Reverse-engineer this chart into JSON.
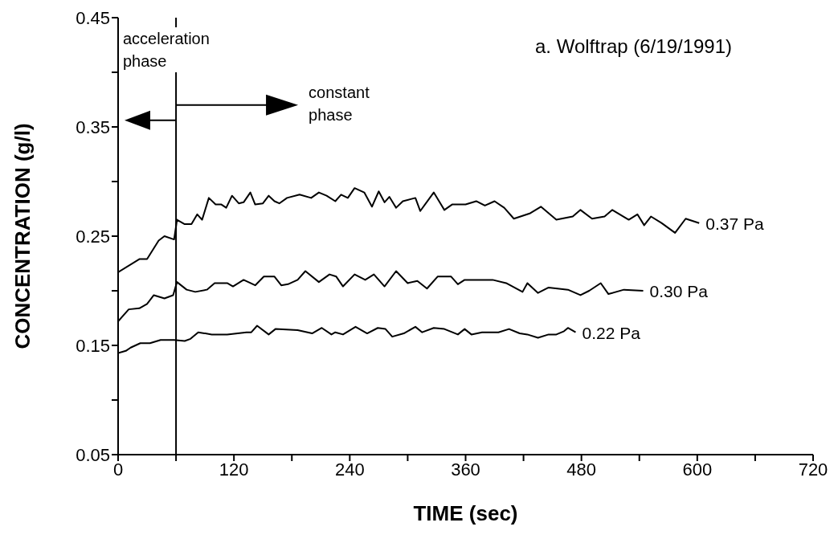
{
  "chart_data": {
    "type": "line",
    "title": "a.  Wolftrap (6/19/1991)",
    "xlabel": "TIME (sec)",
    "ylabel": "CONCENTRATION (g/l)",
    "xlim": [
      0,
      720
    ],
    "xticks": [
      0,
      {
        "value": 60,
        "label": null
      },
      120,
      {
        "value": 180,
        "label": null
      },
      240,
      {
        "value": 300,
        "label": null
      },
      360,
      {
        "value": 420,
        "label": null
      },
      480,
      {
        "value": 540,
        "label": null
      },
      600,
      {
        "value": 660,
        "label": null
      },
      720
    ],
    "ylim": [
      0.05,
      0.45
    ],
    "yticks": [
      0.05,
      {
        "value": 0.1,
        "label": null
      },
      0.15,
      {
        "value": 0.2,
        "label": null
      },
      0.25,
      {
        "value": 0.3,
        "label": null
      },
      0.35,
      {
        "value": 0.4,
        "label": null
      },
      0.45
    ],
    "marker": "none",
    "line_style": "solid",
    "ref_lines": [
      {
        "axis": "x",
        "value": 60,
        "color": "#000000"
      }
    ],
    "annotations": [
      "acceleration\nphase",
      "constant\nphase"
    ],
    "series": [
      {
        "name": "0.37 Pa",
        "color": "#000000",
        "x": [
          0,
          22,
          30,
          42,
          48,
          58,
          61,
          69,
          76,
          82,
          87,
          94,
          101,
          107,
          112,
          118,
          125,
          130,
          137,
          142,
          150,
          156,
          162,
          167,
          175,
          188,
          200,
          208,
          216,
          225,
          231,
          238,
          245,
          255,
          263,
          270,
          276,
          281,
          288,
          295,
          308,
          313,
          327,
          338,
          346,
          360,
          371,
          380,
          390,
          400,
          410,
          427,
          438,
          454,
          471,
          479,
          491,
          504,
          512,
          529,
          538,
          545,
          552,
          563,
          577,
          588,
          602
        ],
        "values": [
          0.217,
          0.229,
          0.229,
          0.246,
          0.25,
          0.247,
          0.265,
          0.261,
          0.261,
          0.27,
          0.265,
          0.285,
          0.279,
          0.279,
          0.276,
          0.287,
          0.28,
          0.281,
          0.29,
          0.279,
          0.28,
          0.287,
          0.282,
          0.28,
          0.285,
          0.288,
          0.285,
          0.29,
          0.287,
          0.282,
          0.288,
          0.285,
          0.294,
          0.29,
          0.277,
          0.291,
          0.281,
          0.286,
          0.276,
          0.282,
          0.285,
          0.273,
          0.29,
          0.274,
          0.279,
          0.279,
          0.282,
          0.278,
          0.282,
          0.276,
          0.266,
          0.271,
          0.277,
          0.265,
          0.268,
          0.274,
          0.266,
          0.268,
          0.274,
          0.265,
          0.27,
          0.26,
          0.268,
          0.262,
          0.253,
          0.266,
          0.262
        ]
      },
      {
        "name": "0.30 Pa",
        "color": "#000000",
        "x": [
          0,
          11,
          22,
          30,
          37,
          48,
          57,
          61,
          71,
          80,
          92,
          100,
          113,
          119,
          130,
          142,
          151,
          162,
          169,
          176,
          186,
          194,
          208,
          219,
          226,
          233,
          245,
          256,
          265,
          276,
          288,
          300,
          310,
          320,
          331,
          345,
          352,
          359,
          371,
          388,
          402,
          419,
          424,
          435,
          446,
          466,
          479,
          488,
          500,
          508,
          524,
          544
        ],
        "values": [
          0.172,
          0.183,
          0.184,
          0.188,
          0.196,
          0.193,
          0.196,
          0.208,
          0.201,
          0.199,
          0.201,
          0.207,
          0.207,
          0.204,
          0.21,
          0.205,
          0.213,
          0.213,
          0.205,
          0.206,
          0.21,
          0.218,
          0.208,
          0.215,
          0.213,
          0.204,
          0.215,
          0.21,
          0.215,
          0.204,
          0.218,
          0.207,
          0.209,
          0.202,
          0.213,
          0.213,
          0.206,
          0.21,
          0.21,
          0.21,
          0.207,
          0.199,
          0.207,
          0.198,
          0.203,
          0.201,
          0.196,
          0.2,
          0.207,
          0.197,
          0.201,
          0.2
        ]
      },
      {
        "name": "0.22 Pa",
        "color": "#000000",
        "x": [
          0,
          8,
          13,
          23,
          33,
          44,
          58,
          69,
          75,
          83,
          97,
          113,
          133,
          138,
          144,
          156,
          163,
          186,
          201,
          211,
          221,
          225,
          233,
          246,
          258,
          269,
          277,
          284,
          296,
          308,
          315,
          327,
          338,
          352,
          359,
          366,
          377,
          394,
          405,
          416,
          424,
          435,
          446,
          454,
          462,
          466,
          474
        ],
        "values": [
          0.143,
          0.145,
          0.148,
          0.152,
          0.152,
          0.155,
          0.155,
          0.154,
          0.156,
          0.162,
          0.16,
          0.16,
          0.162,
          0.162,
          0.168,
          0.16,
          0.165,
          0.164,
          0.161,
          0.166,
          0.16,
          0.162,
          0.16,
          0.167,
          0.161,
          0.166,
          0.165,
          0.158,
          0.161,
          0.167,
          0.162,
          0.166,
          0.165,
          0.16,
          0.165,
          0.16,
          0.162,
          0.162,
          0.165,
          0.161,
          0.16,
          0.157,
          0.16,
          0.16,
          0.163,
          0.166,
          0.162
        ]
      }
    ]
  }
}
